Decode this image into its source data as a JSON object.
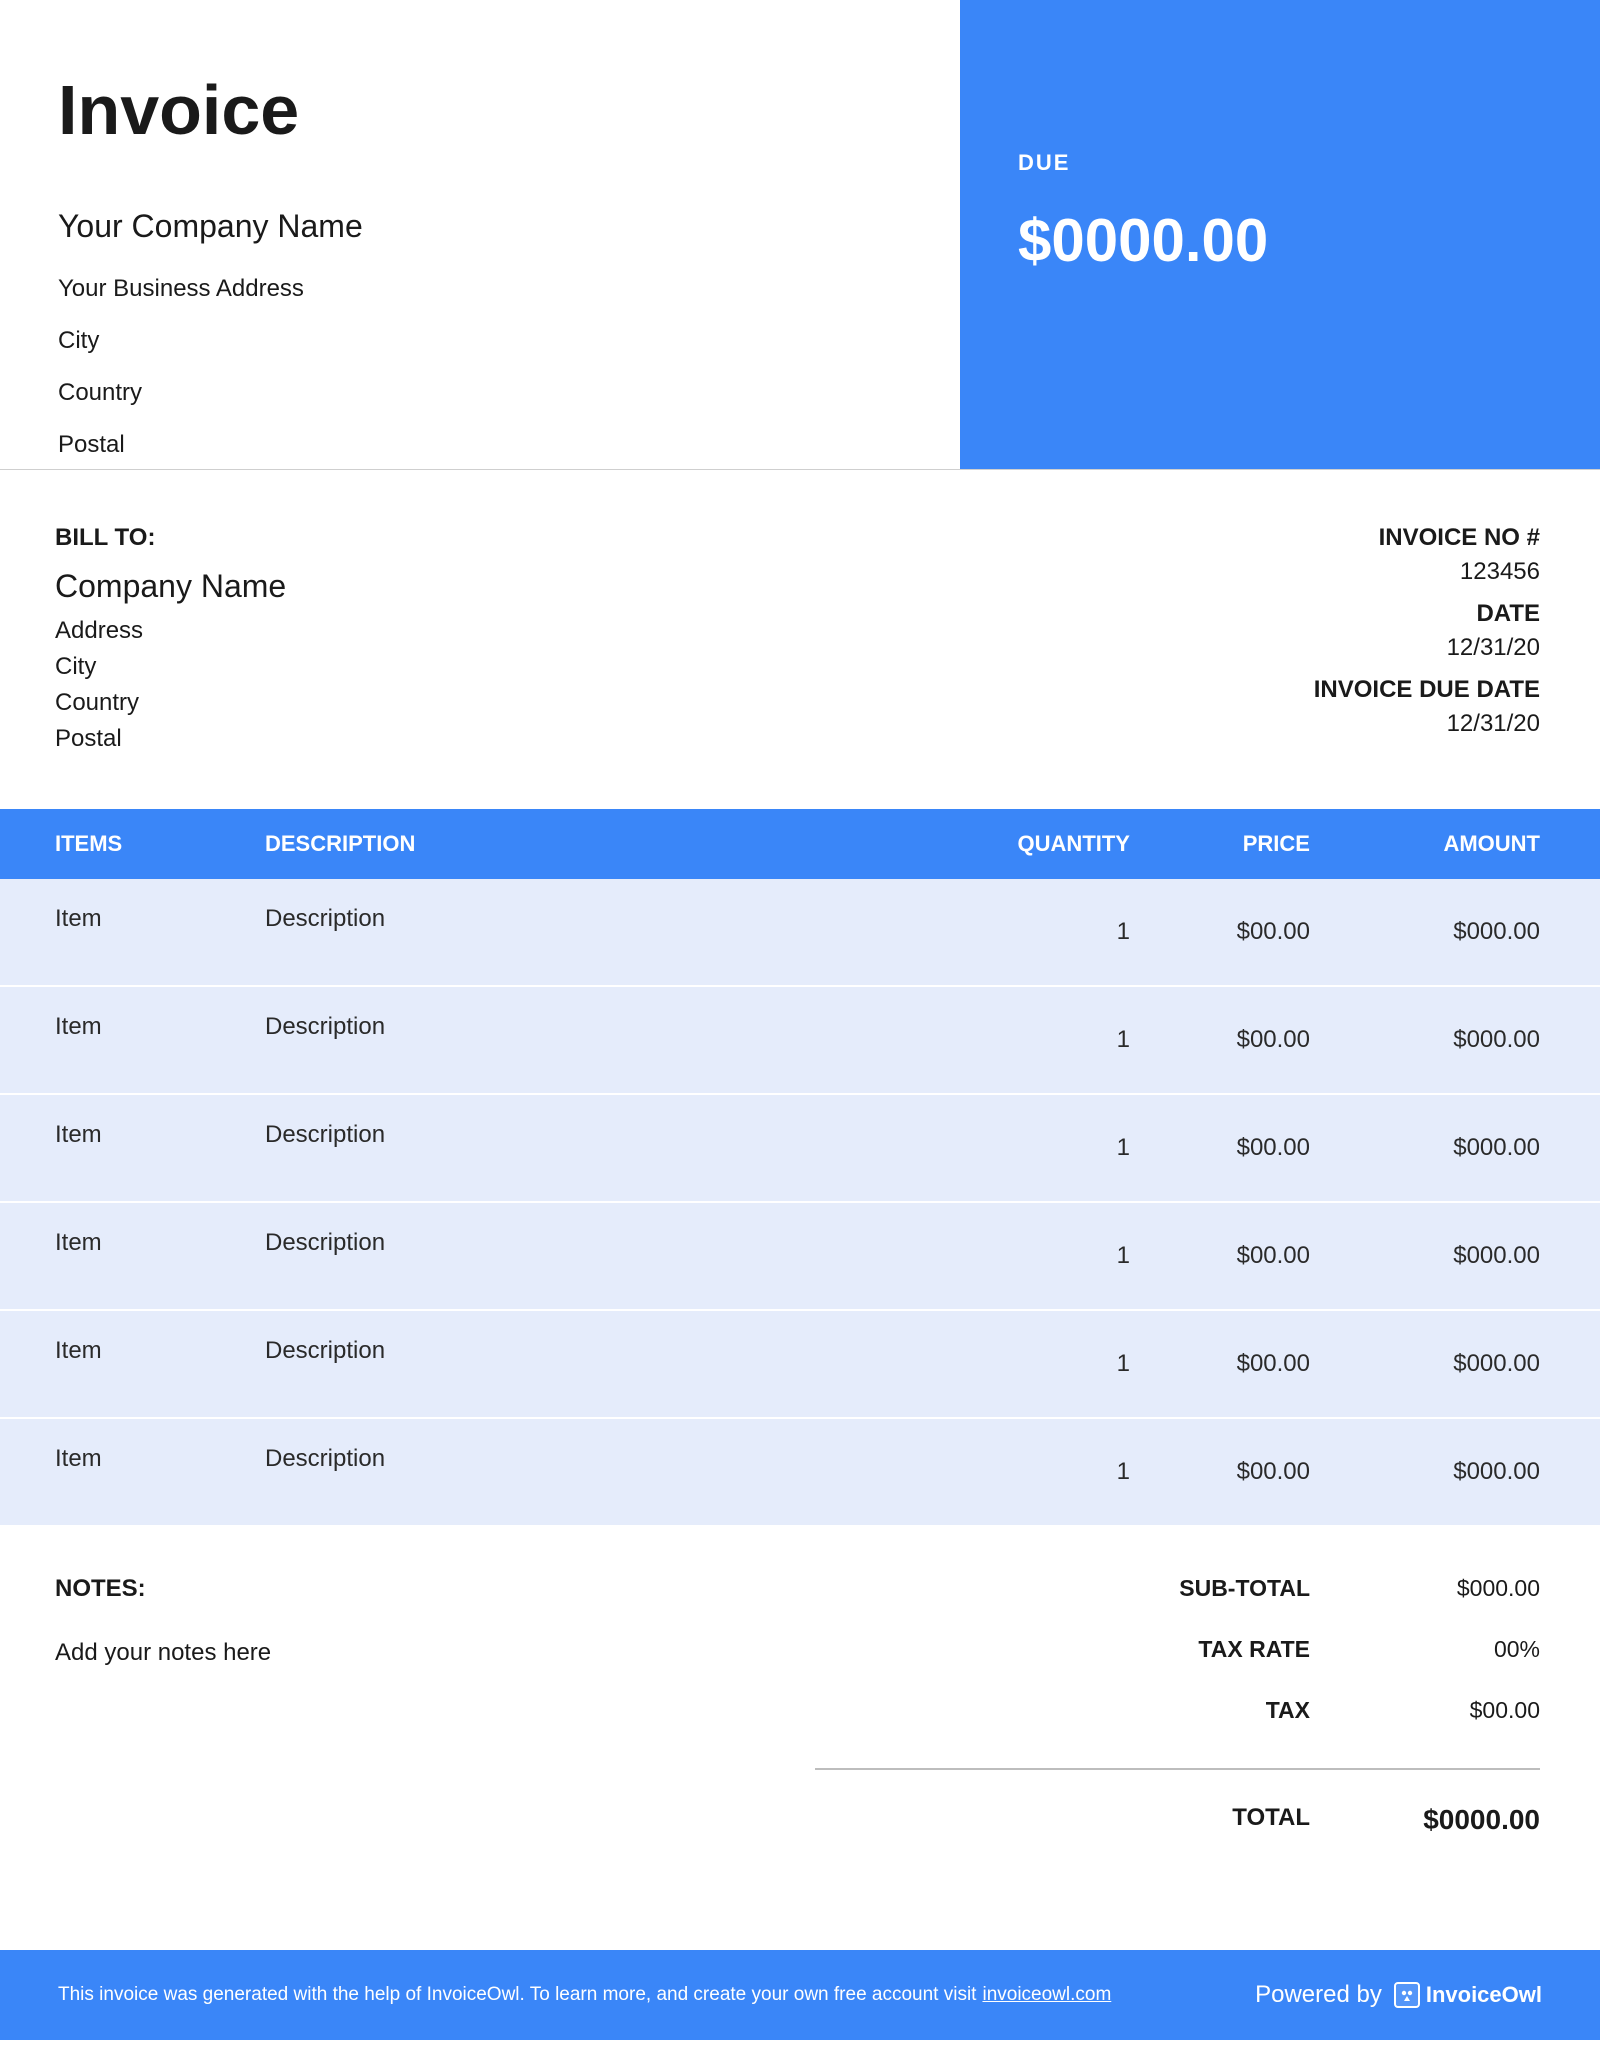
{
  "colors": {
    "accent": "#3a86f8",
    "row_bg": "#e5ecfb",
    "text": "#1a1a1a",
    "divider": "#bdbdbd",
    "white": "#ffffff"
  },
  "header": {
    "title": "Invoice",
    "company_name": "Your Company Name",
    "address": "Your Business Address",
    "city": "City",
    "country": "Country",
    "postal": "Postal",
    "due_label": "DUE",
    "due_amount": "$0000.00"
  },
  "bill_to": {
    "label": "BILL TO:",
    "company_name": "Company Name",
    "address": "Address",
    "city": "City",
    "country": "Country",
    "postal": "Postal"
  },
  "invoice_meta": {
    "no_label": "INVOICE NO #",
    "no_value": "123456",
    "date_label": "DATE",
    "date_value": "12/31/20",
    "due_date_label": "INVOICE DUE DATE",
    "due_date_value": "12/31/20"
  },
  "table": {
    "columns": {
      "item": "ITEMS",
      "description": "DESCRIPTION",
      "quantity": "QUANTITY",
      "price": "PRICE",
      "amount": "AMOUNT"
    },
    "rows": [
      {
        "item": "Item",
        "description": "Description",
        "quantity": "1",
        "price": "$00.00",
        "amount": "$000.00"
      },
      {
        "item": "Item",
        "description": "Description",
        "quantity": "1",
        "price": "$00.00",
        "amount": "$000.00"
      },
      {
        "item": "Item",
        "description": "Description",
        "quantity": "1",
        "price": "$00.00",
        "amount": "$000.00"
      },
      {
        "item": "Item",
        "description": "Description",
        "quantity": "1",
        "price": "$00.00",
        "amount": "$000.00"
      },
      {
        "item": "Item",
        "description": "Description",
        "quantity": "1",
        "price": "$00.00",
        "amount": "$000.00"
      },
      {
        "item": "Item",
        "description": "Description",
        "quantity": "1",
        "price": "$00.00",
        "amount": "$000.00"
      }
    ]
  },
  "notes": {
    "label": "NOTES:",
    "text": "Add your notes here"
  },
  "totals": {
    "subtotal_label": "SUB-TOTAL",
    "subtotal_value": "$000.00",
    "taxrate_label": "TAX RATE",
    "taxrate_value": "00%",
    "tax_label": "TAX",
    "tax_value": "$00.00",
    "total_label": "TOTAL",
    "total_value": "$0000.00"
  },
  "footer": {
    "text": "This invoice was generated with the help of InvoiceOwl. To learn more, and create your own free account visit ",
    "link_text": "invoiceowl.com",
    "powered_by_label": "Powered by",
    "brand": "InvoiceOwl"
  }
}
